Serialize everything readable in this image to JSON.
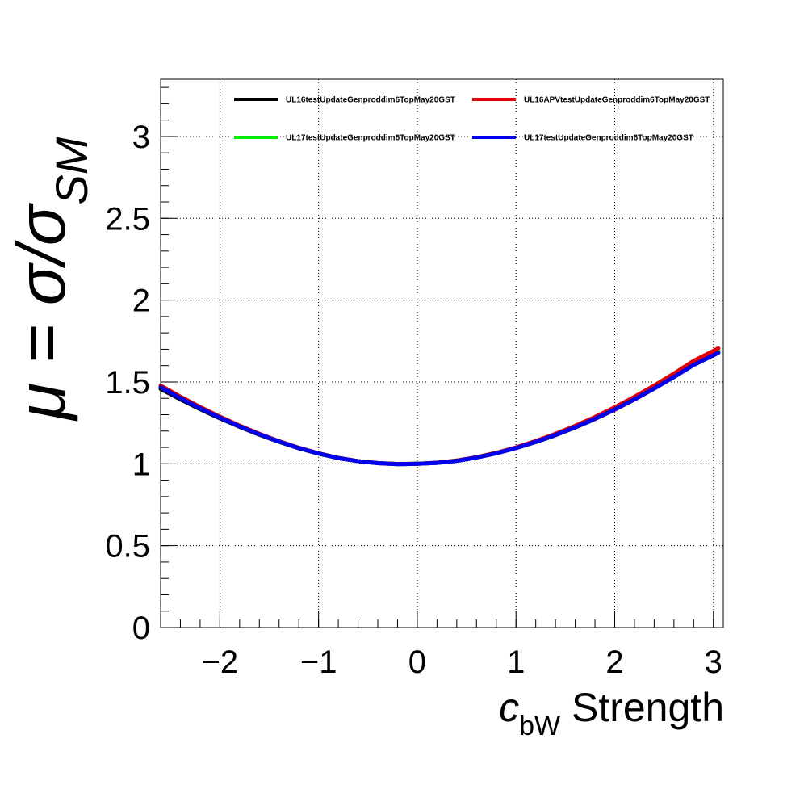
{
  "chart_data": {
    "type": "line",
    "title": "",
    "xlabel": {
      "main": "c",
      "subscript": "bW",
      "suffix": " Strength"
    },
    "ylabel": {
      "prefix": "μ = σ/σ",
      "subscript": "SM"
    },
    "xlim": [
      -2.6,
      3.1
    ],
    "ylim": [
      0,
      3.35
    ],
    "x_ticks": [
      {
        "value": -2,
        "label": "−2"
      },
      {
        "value": -1,
        "label": "−1"
      },
      {
        "value": 0,
        "label": "0"
      },
      {
        "value": 1,
        "label": "1"
      },
      {
        "value": 2,
        "label": "2"
      },
      {
        "value": 3,
        "label": "3"
      }
    ],
    "y_ticks": [
      {
        "value": 0,
        "label": "0"
      },
      {
        "value": 0.5,
        "label": "0.5"
      },
      {
        "value": 1,
        "label": "1"
      },
      {
        "value": 1.5,
        "label": "1.5"
      },
      {
        "value": 2,
        "label": "2"
      },
      {
        "value": 2.5,
        "label": "2.5"
      },
      {
        "value": 3,
        "label": "3"
      }
    ],
    "grid": true,
    "legend_position": "top",
    "x": [
      -2.6,
      -2.4,
      -2.2,
      -2.0,
      -1.8,
      -1.6,
      -1.4,
      -1.2,
      -1.0,
      -0.8,
      -0.6,
      -0.4,
      -0.2,
      0.0,
      0.2,
      0.4,
      0.6,
      0.8,
      1.0,
      1.2,
      1.4,
      1.6,
      1.8,
      2.0,
      2.2,
      2.4,
      2.6,
      2.8,
      3.0,
      3.05
    ],
    "series": [
      {
        "name": "UL16testUpdateGenproddim6TopMay20GST",
        "color": "#000000",
        "values": [
          1.458,
          1.394,
          1.334,
          1.278,
          1.226,
          1.178,
          1.134,
          1.095,
          1.062,
          1.035,
          1.016,
          1.004,
          0.998,
          1.0,
          1.006,
          1.018,
          1.038,
          1.064,
          1.096,
          1.133,
          1.175,
          1.222,
          1.274,
          1.331,
          1.393,
          1.46,
          1.531,
          1.606,
          1.666,
          1.681
        ]
      },
      {
        "name": "UL16APVtestUpdateGenproddim6TopMay20GST",
        "color": "#dd0000",
        "values": [
          1.478,
          1.41,
          1.347,
          1.288,
          1.233,
          1.183,
          1.138,
          1.098,
          1.064,
          1.036,
          1.016,
          1.004,
          0.999,
          1.0,
          1.007,
          1.02,
          1.04,
          1.067,
          1.1,
          1.139,
          1.183,
          1.232,
          1.286,
          1.345,
          1.409,
          1.478,
          1.551,
          1.629,
          1.69,
          1.706
        ]
      },
      {
        "name": "UL17testUpdateGenproddim6TopMay20GST",
        "color": "#00ee00",
        "values": [
          1.468,
          1.402,
          1.341,
          1.283,
          1.23,
          1.181,
          1.136,
          1.097,
          1.063,
          1.036,
          1.016,
          1.004,
          0.999,
          1.0,
          1.006,
          1.019,
          1.039,
          1.065,
          1.098,
          1.136,
          1.179,
          1.227,
          1.28,
          1.338,
          1.401,
          1.468,
          1.54,
          1.616,
          1.676,
          1.692
        ]
      },
      {
        "name": "UL17testUpdateGenproddim6TopMay20GST",
        "color": "#0000ee",
        "values": [
          1.468,
          1.401,
          1.339,
          1.282,
          1.229,
          1.18,
          1.136,
          1.096,
          1.063,
          1.035,
          1.016,
          1.004,
          0.998,
          1.0,
          1.006,
          1.018,
          1.038,
          1.064,
          1.096,
          1.134,
          1.176,
          1.223,
          1.275,
          1.332,
          1.394,
          1.46,
          1.53,
          1.604,
          1.663,
          1.678
        ]
      }
    ]
  }
}
